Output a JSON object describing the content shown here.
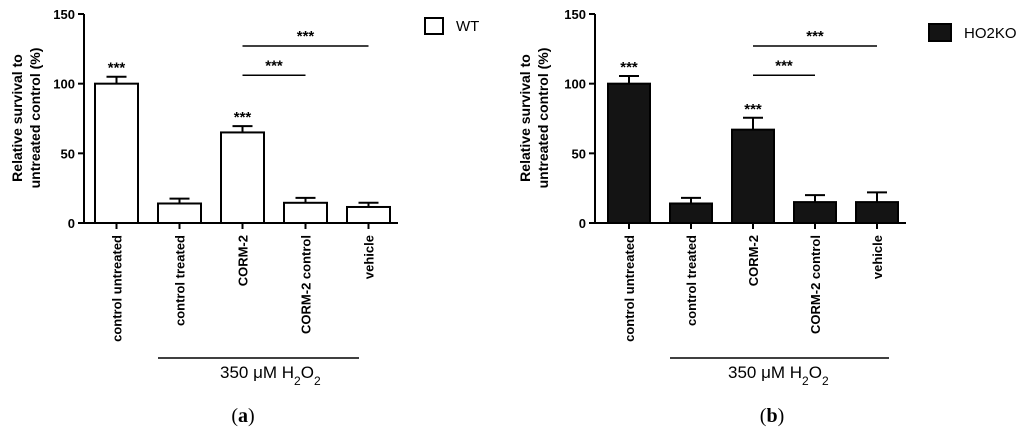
{
  "chart_data": [
    {
      "type": "bar",
      "panel_label": "(a)",
      "ylabel_line1": "Relative survival to",
      "ylabel_line2": "untreated control (%)",
      "ylim": [
        0,
        150
      ],
      "yticks": [
        "0",
        "50",
        "100",
        "150"
      ],
      "categories": [
        "control untreated",
        "control treated",
        "CORM-2",
        "CORM-2 control",
        "vehicle"
      ],
      "series": [
        {
          "name": "WT",
          "values": [
            100,
            14,
            65,
            14.5,
            11.5
          ],
          "errors": [
            5,
            3.5,
            4.5,
            3.5,
            3
          ],
          "color": "#ffffff"
        }
      ],
      "legend": {
        "placement": "top-right",
        "label": "WT"
      },
      "bar_stars": [
        "***",
        "",
        "***",
        "",
        ""
      ],
      "comparisons": [
        {
          "from": 2,
          "to": 3,
          "label": "***"
        },
        {
          "from": 2,
          "to": 4,
          "label": "***"
        }
      ],
      "treatment": {
        "prefix": "350 μM H",
        "sub1": "2",
        "mid": "O",
        "sub2": "2"
      }
    },
    {
      "type": "bar",
      "panel_label": "(b)",
      "ylabel_line1": "Relative survival to",
      "ylabel_line2": "untreated control (%)",
      "ylim": [
        0,
        150
      ],
      "yticks": [
        "0",
        "50",
        "100",
        "150"
      ],
      "categories": [
        "control untreated",
        "control treated",
        "CORM-2",
        "CORM-2 control",
        "vehicle"
      ],
      "series": [
        {
          "name": "HO2KO",
          "values": [
            100,
            14,
            67,
            15,
            15
          ],
          "errors": [
            5.5,
            4,
            8.5,
            5,
            7
          ],
          "color": "#141414"
        }
      ],
      "legend": {
        "placement": "top-right",
        "label": "HO2KO"
      },
      "bar_stars": [
        "***",
        "",
        "***",
        "",
        ""
      ],
      "comparisons": [
        {
          "from": 2,
          "to": 3,
          "label": "***"
        },
        {
          "from": 2,
          "to": 4,
          "label": "***"
        }
      ],
      "treatment": {
        "prefix": "350 μM H",
        "sub1": "2",
        "mid": "O",
        "sub2": "2"
      }
    }
  ]
}
